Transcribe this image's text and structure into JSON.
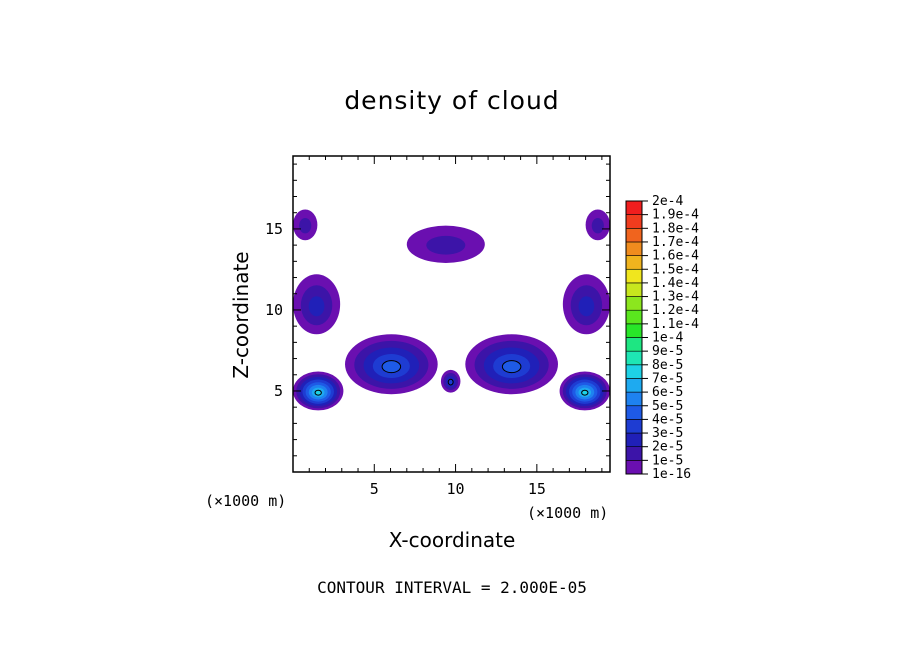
{
  "chart_data": {
    "type": "contour",
    "title": "density of cloud",
    "xlabel": "X-coordinate",
    "ylabel": "Z-coordinate",
    "x_unit": "(×1000 m)",
    "y_unit": "(×1000 m)",
    "xlim": [
      0,
      19.5
    ],
    "ylim": [
      0,
      19.5
    ],
    "x_ticks": [
      "5",
      "10",
      "15"
    ],
    "y_ticks": [
      "5",
      "10",
      "15"
    ],
    "footer": "CONTOUR INTERVAL = 2.000E-05",
    "legend_placement": "right",
    "colorbar_labels": [
      "1e-16",
      "1e-5",
      "2e-5",
      "3e-5",
      "4e-5",
      "5e-5",
      "6e-5",
      "7e-5",
      "8e-5",
      "9e-5",
      "1e-4",
      "1.1e-4",
      "1.2e-4",
      "1.3e-4",
      "1.4e-4",
      "1.5e-4",
      "1.6e-4",
      "1.7e-4",
      "1.8e-4",
      "1.9e-4",
      "2e-4"
    ],
    "colorbar_colors": [
      "#6a0fb0",
      "#3c14a8",
      "#2020b8",
      "#1e3cd2",
      "#1e5ae6",
      "#1e82f0",
      "#1eaaf0",
      "#1ed2e6",
      "#1ee6b4",
      "#1ee682",
      "#28e628",
      "#5ae61e",
      "#8ce61e",
      "#c8e61e",
      "#f0e61e",
      "#f0b41e",
      "#f08c1e",
      "#f0641e",
      "#f03c1e",
      "#f01e1e",
      "#f07878"
    ],
    "blobs": [
      {
        "name": "top-center",
        "x": [
          7.0,
          11.8
        ],
        "z": [
          12.9,
          15.2
        ],
        "peak": 1e-05
      },
      {
        "name": "left-upper-edge",
        "x": [
          0.0,
          1.5
        ],
        "z": [
          14.3,
          16.2
        ],
        "peak": 1e-05
      },
      {
        "name": "right-upper-edge",
        "x": [
          18.0,
          19.5
        ],
        "z": [
          14.3,
          16.2
        ],
        "peak": 1e-05
      },
      {
        "name": "left-mid-edge",
        "x": [
          0.0,
          2.9
        ],
        "z": [
          8.5,
          12.2
        ],
        "peak": 2e-05
      },
      {
        "name": "right-mid-edge",
        "x": [
          16.6,
          19.5
        ],
        "z": [
          8.5,
          12.2
        ],
        "peak": 2e-05
      },
      {
        "name": "left-lower-edge",
        "x": [
          0.0,
          3.1
        ],
        "z": [
          3.8,
          6.2
        ],
        "peak": 7e-05
      },
      {
        "name": "right-lower-edge",
        "x": [
          16.4,
          19.5
        ],
        "z": [
          3.8,
          6.2
        ],
        "peak": 7e-05
      },
      {
        "name": "center-left",
        "x": [
          3.2,
          8.9
        ],
        "z": [
          4.8,
          8.5
        ],
        "peak": 4e-05
      },
      {
        "name": "center-right",
        "x": [
          10.6,
          16.3
        ],
        "z": [
          4.8,
          8.5
        ],
        "peak": 4e-05
      },
      {
        "name": "center-spike",
        "x": [
          9.1,
          10.3
        ],
        "z": [
          4.9,
          6.3
        ],
        "peak": 3e-05
      }
    ]
  }
}
